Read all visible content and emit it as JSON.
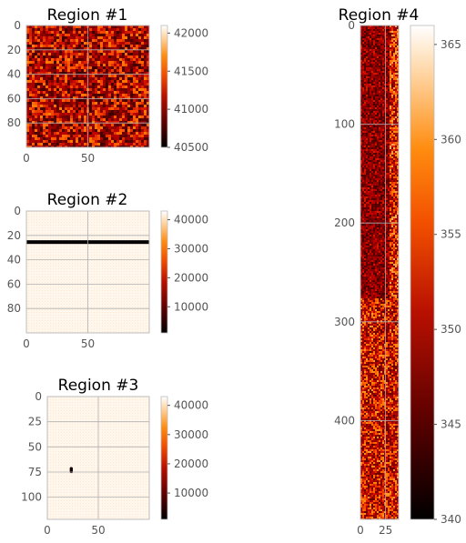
{
  "chart_data": [
    {
      "type": "heatmap",
      "title": "Region #1",
      "colormap": "gist_heat",
      "grid": true,
      "xlim": [
        0,
        100
      ],
      "ylim": [
        0,
        100
      ],
      "xticks": [
        0,
        50
      ],
      "yticks": [
        0,
        20,
        40,
        60,
        80
      ],
      "colorbar": {
        "range": [
          40500,
          42100
        ],
        "ticks": [
          40500,
          41000,
          41500,
          42000
        ]
      },
      "pattern": "noise",
      "noise_level": [
        0.15,
        0.75
      ]
    },
    {
      "type": "heatmap",
      "title": "Region #2",
      "colormap": "gist_heat",
      "grid": true,
      "xlim": [
        0,
        100
      ],
      "ylim": [
        0,
        100
      ],
      "xticks": [
        0,
        50
      ],
      "yticks": [
        0,
        20,
        40,
        60,
        80
      ],
      "colorbar": {
        "range": [
          1000,
          43000
        ],
        "ticks": [
          10000,
          20000,
          30000,
          40000
        ]
      },
      "pattern": "background-with-dark-row",
      "background_level": 0.97,
      "dark_row": {
        "y": 24,
        "height": 3
      }
    },
    {
      "type": "heatmap",
      "title": "Region #3",
      "colormap": "gist_heat",
      "grid": true,
      "xlim": [
        0,
        100
      ],
      "ylim": [
        0,
        122
      ],
      "xticks": [
        0,
        50
      ],
      "yticks": [
        0,
        25,
        50,
        75,
        100
      ],
      "colorbar": {
        "range": [
          1000,
          43000
        ],
        "ticks": [
          10000,
          20000,
          30000,
          40000
        ]
      },
      "pattern": "background-with-dark-spot",
      "background_level": 0.97,
      "dark_spot": {
        "x": 22,
        "y": 70,
        "w": 3,
        "h": 6
      }
    },
    {
      "type": "heatmap",
      "title": "Region #4",
      "colormap": "gist_heat",
      "grid": true,
      "xlim": [
        0,
        38
      ],
      "ylim": [
        0,
        500
      ],
      "xticks": [
        0,
        25
      ],
      "yticks": [
        0,
        100,
        200,
        300,
        400
      ],
      "colorbar": {
        "range": [
          340,
          366
        ],
        "ticks": [
          340,
          345,
          350,
          355,
          360,
          365
        ]
      },
      "pattern": "noise-with-dark-upper-block",
      "dark_block_until_y": 275,
      "noise_level": [
        0.25,
        0.8
      ]
    }
  ]
}
